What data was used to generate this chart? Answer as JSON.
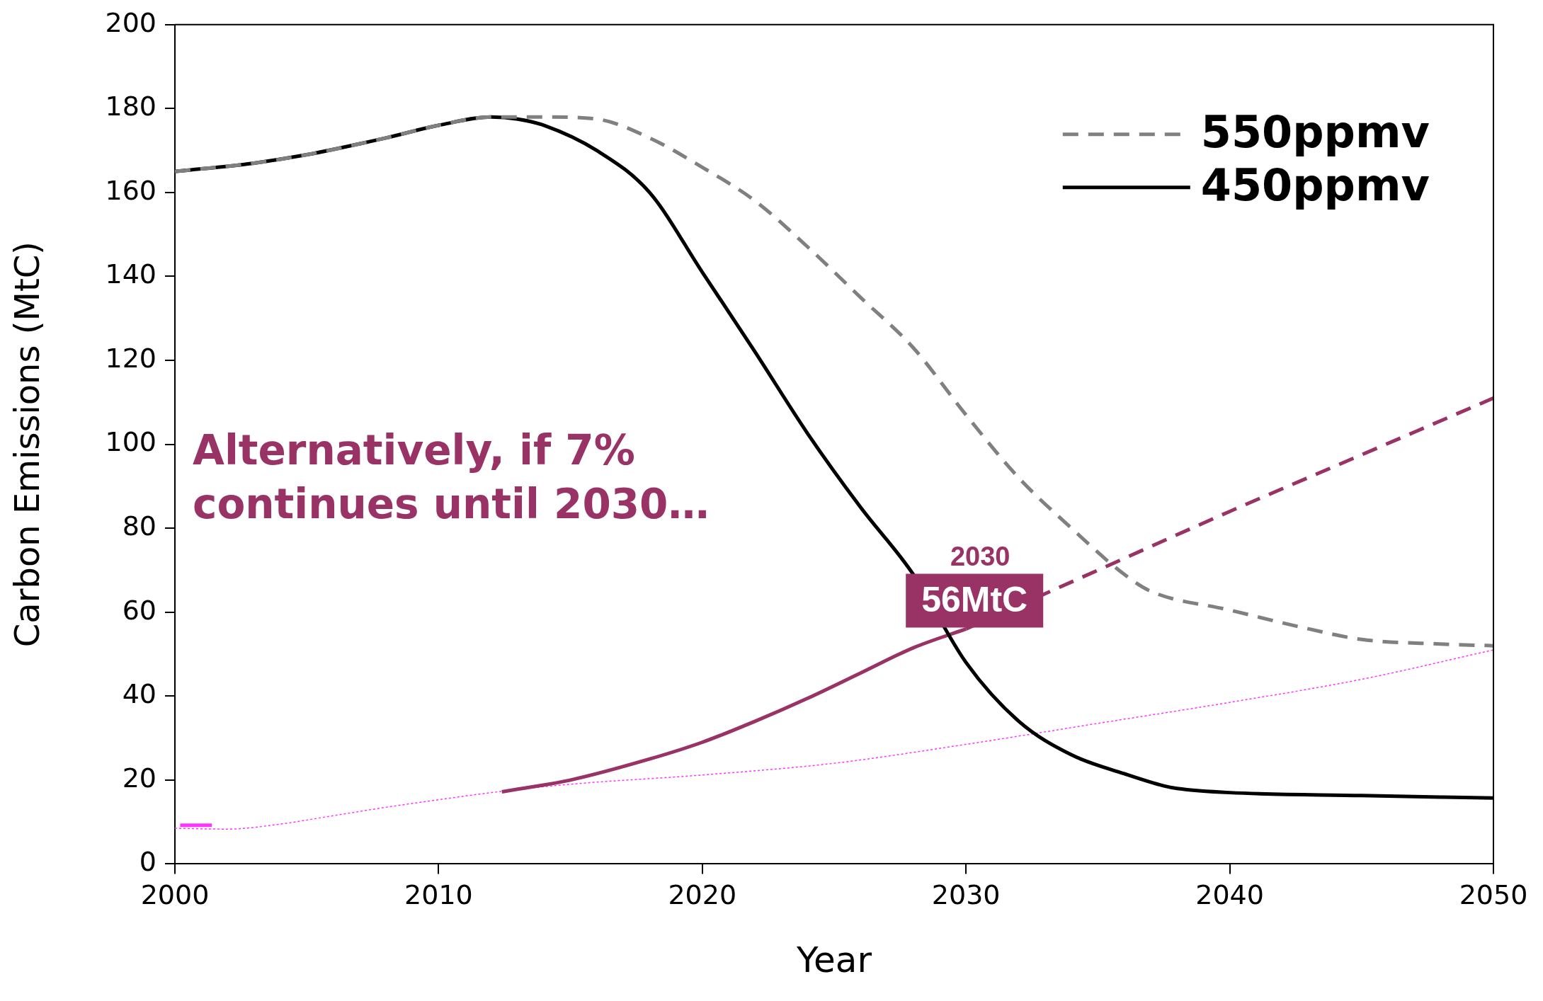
{
  "chart_data": {
    "type": "line",
    "xlabel": "Year",
    "ylabel": "Carbon Emissions (MtC)",
    "xlim": [
      2000,
      2050
    ],
    "xticks": [
      2000,
      2010,
      2020,
      2030,
      2040,
      2050
    ],
    "ylim": [
      0,
      200
    ],
    "yticks": [
      0,
      20,
      40,
      60,
      80,
      100,
      120,
      140,
      160,
      180,
      200
    ],
    "grid": false,
    "legend": "top right",
    "marker": "none",
    "series": [
      {
        "name": "550ppmv",
        "color": "#808080",
        "line_style": "dashed",
        "x": [
          2000,
          2003,
          2005,
          2008,
          2010,
          2012,
          2014,
          2016,
          2018,
          2020,
          2022,
          2024,
          2026,
          2028,
          2030,
          2032,
          2034,
          2036,
          2037,
          2040,
          2043,
          2045,
          2048,
          2050
        ],
        "values": [
          165,
          167,
          169,
          173,
          176,
          178,
          178,
          177.5,
          173,
          166,
          158,
          147,
          135,
          123,
          107,
          92,
          80,
          69,
          65,
          60.5,
          56,
          53.5,
          52.4,
          52
        ]
      },
      {
        "name": "450ppmv",
        "color": "#000000",
        "line_style": "solid",
        "x": [
          2000,
          2003,
          2005,
          2008,
          2010,
          2012,
          2013,
          2014,
          2016,
          2018,
          2020,
          2022,
          2024,
          2026,
          2028,
          2030,
          2032,
          2034,
          2036,
          2037.5,
          2038,
          2040,
          2045,
          2050
        ],
        "values": [
          165,
          167,
          169,
          173,
          176,
          178,
          177.5,
          176,
          170,
          160,
          141,
          122,
          102.5,
          85,
          69,
          48,
          34,
          26,
          21.5,
          18.6,
          18,
          17,
          16.3,
          15.7
        ]
      },
      {
        "color": "#993366",
        "line_style": "solid",
        "x": [
          2012.4,
          2015,
          2018,
          2020,
          2022,
          2024,
          2026,
          2028,
          2030
        ],
        "values": [
          17.2,
          20,
          25,
          29,
          34,
          39.5,
          45.5,
          51.5,
          56
        ]
      },
      {
        "color": "#993366",
        "line_style": "dashed",
        "x": [
          2030,
          2035,
          2040,
          2045,
          2050
        ],
        "values": [
          56,
          70,
          84,
          97.5,
          111
        ]
      },
      {
        "color": "#ff33ff",
        "line_style": "dotted",
        "x": [
          2000,
          2002,
          2004,
          2006,
          2008,
          2010,
          2012,
          2015,
          2020,
          2025,
          2030,
          2035,
          2040,
          2045,
          2050
        ],
        "values": [
          8.5,
          8.3,
          9.5,
          11.5,
          13.5,
          15.3,
          17,
          19,
          21.2,
          24,
          28.5,
          33.5,
          38.5,
          44,
          51
        ]
      },
      {
        "color": "#ff33ff",
        "line_style": "solid",
        "x": [
          2000.2,
          2001.4
        ],
        "values": [
          9.2,
          9.2
        ]
      }
    ],
    "annotations": [
      "Alternatively, if 7% continues until 2030…",
      "2030",
      {
        "text": "56MtC",
        "x": 2030,
        "y": 56
      }
    ]
  }
}
